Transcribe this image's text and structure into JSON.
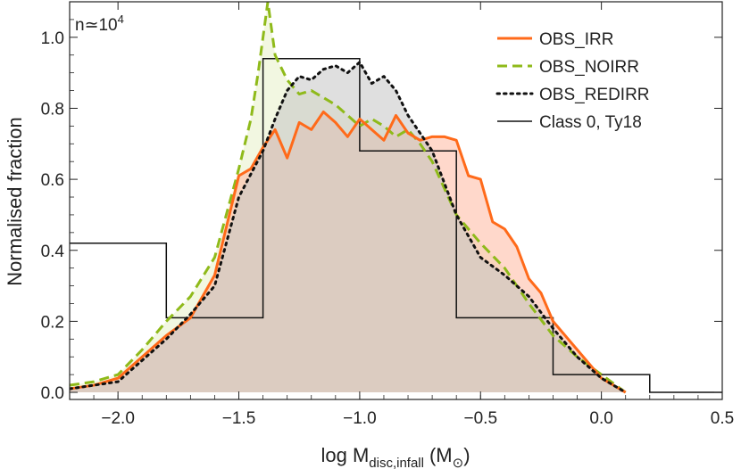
{
  "chart_data": {
    "type": "area",
    "annotation": "n≃10",
    "annotation_sup": "4",
    "xlabel_main": "log M",
    "xlabel_sub": "disc,infall",
    "xlabel_unit": "(M",
    "xlabel_unit_sub": "⊙",
    "xlabel_close": ")",
    "ylabel": "Normalised fraction",
    "xlim": [
      -2.2,
      0.5
    ],
    "ylim": [
      -0.02,
      1.1
    ],
    "xticks": [
      -2.0,
      -1.5,
      -1.0,
      -0.5,
      0.0,
      0.5
    ],
    "xtick_labels": [
      "−2.0",
      "−1.5",
      "−1.0",
      "−0.5",
      "0.0",
      "0.5"
    ],
    "yticks": [
      0.0,
      0.2,
      0.4,
      0.6,
      0.8,
      1.0
    ],
    "ytick_labels": [
      "0.0",
      "0.2",
      "0.4",
      "0.6",
      "0.8",
      "1.0"
    ],
    "legend_position": "top-right",
    "series": [
      {
        "name": "OBS_IRR",
        "style": "solid",
        "color": "#ff6a1a",
        "fill": "#ffb8a0",
        "x": [
          -2.2,
          -2.1,
          -2.0,
          -1.9,
          -1.8,
          -1.7,
          -1.6,
          -1.5,
          -1.45,
          -1.4,
          -1.35,
          -1.3,
          -1.25,
          -1.2,
          -1.15,
          -1.1,
          -1.05,
          -1.0,
          -0.95,
          -0.9,
          -0.85,
          -0.8,
          -0.75,
          -0.7,
          -0.65,
          -0.6,
          -0.55,
          -0.5,
          -0.45,
          -0.4,
          -0.35,
          -0.3,
          -0.25,
          -0.2,
          -0.1,
          0.0,
          0.1
        ],
        "y": [
          0.01,
          0.02,
          0.04,
          0.1,
          0.16,
          0.21,
          0.33,
          0.61,
          0.63,
          0.69,
          0.74,
          0.66,
          0.76,
          0.74,
          0.79,
          0.76,
          0.72,
          0.77,
          0.74,
          0.71,
          0.78,
          0.73,
          0.71,
          0.72,
          0.72,
          0.71,
          0.61,
          0.6,
          0.48,
          0.46,
          0.41,
          0.32,
          0.28,
          0.2,
          0.12,
          0.04,
          0.0
        ]
      },
      {
        "name": "OBS_NOIRR",
        "style": "dashed",
        "color": "#8fba1a",
        "fill": "#e8f0c8",
        "x": [
          -2.2,
          -2.1,
          -2.0,
          -1.9,
          -1.8,
          -1.7,
          -1.6,
          -1.5,
          -1.45,
          -1.42,
          -1.38,
          -1.35,
          -1.3,
          -1.25,
          -1.2,
          -1.15,
          -1.1,
          -1.05,
          -1.0,
          -0.95,
          -0.9,
          -0.85,
          -0.8,
          -0.75,
          -0.7,
          -0.6,
          -0.5,
          -0.4,
          -0.3,
          -0.2,
          -0.1,
          0.0,
          0.1
        ],
        "y": [
          0.02,
          0.03,
          0.05,
          0.12,
          0.2,
          0.27,
          0.38,
          0.63,
          0.77,
          0.9,
          1.1,
          0.95,
          0.88,
          0.84,
          0.85,
          0.83,
          0.81,
          0.78,
          0.75,
          0.77,
          0.75,
          0.72,
          0.74,
          0.7,
          0.65,
          0.5,
          0.42,
          0.35,
          0.25,
          0.16,
          0.1,
          0.05,
          0.0
        ]
      },
      {
        "name": "OBS_REDIRR",
        "style": "dotted",
        "color": "#111111",
        "fill": "#c4c4c4",
        "x": [
          -2.2,
          -2.1,
          -2.0,
          -1.9,
          -1.8,
          -1.7,
          -1.6,
          -1.5,
          -1.4,
          -1.35,
          -1.3,
          -1.25,
          -1.2,
          -1.15,
          -1.1,
          -1.05,
          -1.0,
          -0.95,
          -0.9,
          -0.85,
          -0.8,
          -0.75,
          -0.7,
          -0.6,
          -0.5,
          -0.4,
          -0.3,
          -0.2,
          -0.1,
          0.0,
          0.1
        ],
        "y": [
          0.01,
          0.02,
          0.03,
          0.09,
          0.15,
          0.22,
          0.3,
          0.55,
          0.68,
          0.77,
          0.85,
          0.89,
          0.88,
          0.91,
          0.92,
          0.9,
          0.93,
          0.87,
          0.89,
          0.85,
          0.78,
          0.73,
          0.68,
          0.5,
          0.38,
          0.33,
          0.27,
          0.18,
          0.1,
          0.04,
          0.0
        ]
      }
    ],
    "histogram": {
      "name": "Class 0, Ty18",
      "color": "#111111",
      "edges": [
        -2.2,
        -1.8,
        -1.4,
        -1.0,
        -0.6,
        -0.2,
        0.2,
        0.5
      ],
      "values": [
        0.42,
        0.21,
        0.94,
        0.68,
        0.21,
        0.05,
        0.0
      ]
    }
  }
}
